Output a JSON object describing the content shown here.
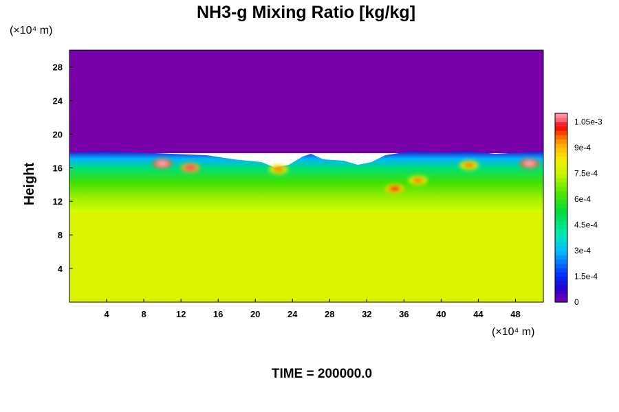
{
  "chart_data": {
    "type": "heatmap",
    "title": "NH3-g Mixing Ratio [kg/kg]",
    "ylabel": "Height",
    "x_unit": "(×10⁴ m)",
    "y_unit": "(×10⁴ m)",
    "xlim": [
      0,
      51
    ],
    "ylim": [
      0,
      30
    ],
    "x_ticks": [
      "4",
      "8",
      "12",
      "16",
      "20",
      "24",
      "28",
      "32",
      "36",
      "40",
      "44",
      "48"
    ],
    "y_ticks": [
      "4",
      "8",
      "12",
      "16",
      "20",
      "24",
      "28"
    ],
    "colorbar": {
      "min": 0,
      "max": 0.0011,
      "ticks": [
        "0",
        "1.5e-4",
        "3e-4",
        "4.5e-4",
        "6e-4",
        "7.5e-4",
        "9e-4",
        "1.05e-3"
      ],
      "tick_values": [
        0,
        0.00015,
        0.0003,
        0.00045,
        0.0006,
        0.00075,
        0.0009,
        0.00105
      ]
    },
    "regions": {
      "lower_uniform_value": 0.00078,
      "lower_uniform_top_height": 10.5,
      "upper_uniform_value": 0,
      "mixing_layer_top_height": 18
    },
    "hotspots": [
      {
        "x": 10,
        "y": 16.5,
        "value": 0.0011
      },
      {
        "x": 13,
        "y": 16.0,
        "value": 0.00105
      },
      {
        "x": 22.5,
        "y": 15.8,
        "value": 0.00095
      },
      {
        "x": 35,
        "y": 13.5,
        "value": 0.001
      },
      {
        "x": 37.5,
        "y": 14.5,
        "value": 0.00095
      },
      {
        "x": 43,
        "y": 16.3,
        "value": 0.00095
      },
      {
        "x": 49.5,
        "y": 16.5,
        "value": 0.0011
      }
    ]
  },
  "time_label": "TIME = 200000.0"
}
